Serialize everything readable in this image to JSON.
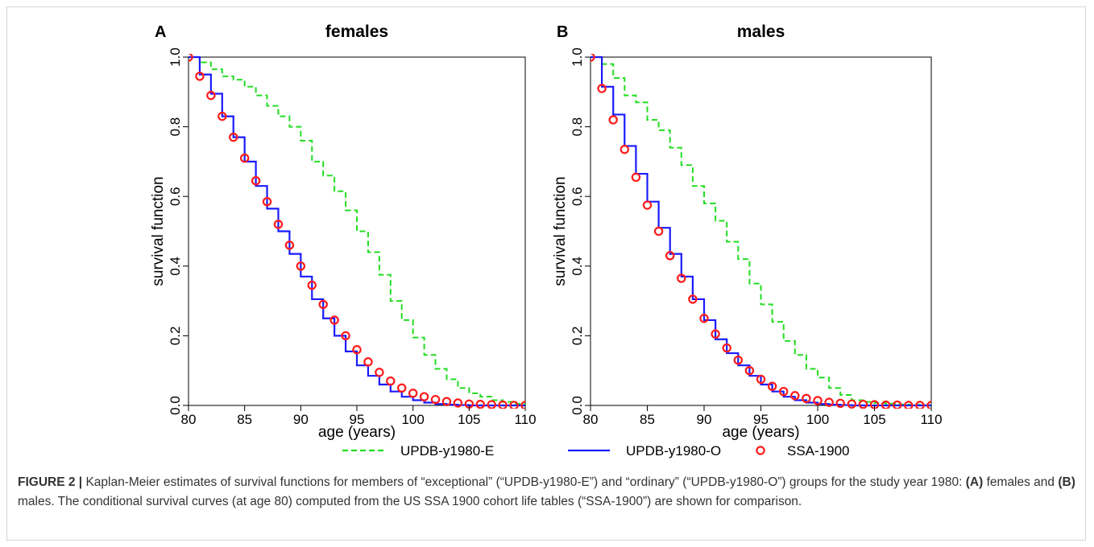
{
  "chart_data": [
    {
      "type": "line",
      "step": true,
      "panel_label": "A",
      "title": "females",
      "xlabel": "age (years)",
      "ylabel": "survival function",
      "xlim": [
        80,
        110
      ],
      "ylim": [
        0,
        1
      ],
      "xticks": [
        "80",
        "85",
        "90",
        "95",
        "100",
        "105",
        "110"
      ],
      "yticks": [
        "0.0",
        "0.2",
        "0.4",
        "0.6",
        "0.8",
        "1.0"
      ],
      "grid": false,
      "series": [
        {
          "name": "UPDB-y1980-E",
          "color": "#22dd22",
          "dash": "dashed",
          "x": [
            80,
            81,
            82,
            83,
            84,
            85,
            86,
            87,
            88,
            89,
            90,
            91,
            92,
            93,
            94,
            95,
            96,
            97,
            98,
            99,
            100,
            101,
            102,
            103,
            104,
            105,
            106,
            107,
            108,
            109,
            110
          ],
          "values": [
            1.0,
            0.985,
            0.965,
            0.945,
            0.935,
            0.915,
            0.89,
            0.86,
            0.83,
            0.8,
            0.76,
            0.7,
            0.66,
            0.615,
            0.56,
            0.5,
            0.44,
            0.375,
            0.3,
            0.245,
            0.195,
            0.145,
            0.105,
            0.075,
            0.05,
            0.035,
            0.025,
            0.015,
            0.01,
            0.005,
            0.0
          ]
        },
        {
          "name": "UPDB-y1980-O",
          "color": "#1a1aff",
          "dash": "solid",
          "x": [
            80,
            81,
            82,
            83,
            84,
            85,
            86,
            87,
            88,
            89,
            90,
            91,
            92,
            93,
            94,
            95,
            96,
            97,
            98,
            99,
            100,
            101,
            102,
            103,
            104,
            105,
            106,
            107,
            108,
            109,
            110
          ],
          "values": [
            1.0,
            0.95,
            0.895,
            0.83,
            0.77,
            0.7,
            0.63,
            0.565,
            0.5,
            0.435,
            0.37,
            0.305,
            0.25,
            0.2,
            0.155,
            0.115,
            0.085,
            0.06,
            0.04,
            0.025,
            0.015,
            0.008,
            0.004,
            0.002,
            0.001,
            0.0,
            0.0,
            0.0,
            0.0,
            0.0,
            0.0
          ]
        },
        {
          "name": "SSA-1900",
          "color": "#ff1a1a",
          "marker": "circle",
          "x": [
            80,
            81,
            82,
            83,
            84,
            85,
            86,
            87,
            88,
            89,
            90,
            91,
            92,
            93,
            94,
            95,
            96,
            97,
            98,
            99,
            100,
            101,
            102,
            103,
            104,
            105,
            106,
            107,
            108,
            109,
            110
          ],
          "values": [
            1.0,
            0.945,
            0.89,
            0.83,
            0.77,
            0.71,
            0.645,
            0.585,
            0.52,
            0.46,
            0.4,
            0.345,
            0.29,
            0.245,
            0.2,
            0.16,
            0.125,
            0.095,
            0.07,
            0.05,
            0.035,
            0.025,
            0.017,
            0.011,
            0.007,
            0.004,
            0.003,
            0.002,
            0.001,
            0.0,
            0.0
          ]
        }
      ]
    },
    {
      "type": "line",
      "step": true,
      "panel_label": "B",
      "title": "males",
      "xlabel": "age (years)",
      "ylabel": "survival function",
      "xlim": [
        80,
        110
      ],
      "ylim": [
        0,
        1
      ],
      "xticks": [
        "80",
        "85",
        "90",
        "95",
        "100",
        "105",
        "110"
      ],
      "yticks": [
        "0.0",
        "0.2",
        "0.4",
        "0.6",
        "0.8",
        "1.0"
      ],
      "grid": false,
      "series": [
        {
          "name": "UPDB-y1980-E",
          "color": "#22dd22",
          "dash": "dashed",
          "x": [
            80,
            81,
            82,
            83,
            84,
            85,
            86,
            87,
            88,
            89,
            90,
            91,
            92,
            93,
            94,
            95,
            96,
            97,
            98,
            99,
            100,
            101,
            102,
            103,
            104,
            105,
            106,
            107,
            108,
            109,
            110
          ],
          "values": [
            1.0,
            0.98,
            0.94,
            0.89,
            0.87,
            0.82,
            0.79,
            0.74,
            0.69,
            0.63,
            0.58,
            0.53,
            0.47,
            0.42,
            0.35,
            0.29,
            0.24,
            0.185,
            0.145,
            0.105,
            0.08,
            0.05,
            0.03,
            0.015,
            0.01,
            0.007,
            0.005,
            0.003,
            0.002,
            0.001,
            0.0
          ]
        },
        {
          "name": "UPDB-y1980-O",
          "color": "#1a1aff",
          "dash": "solid",
          "x": [
            80,
            81,
            82,
            83,
            84,
            85,
            86,
            87,
            88,
            89,
            90,
            91,
            92,
            93,
            94,
            95,
            96,
            97,
            98,
            99,
            100,
            101,
            102,
            103,
            104,
            105,
            106,
            107,
            108,
            109,
            110
          ],
          "values": [
            1.0,
            0.915,
            0.835,
            0.745,
            0.665,
            0.585,
            0.51,
            0.435,
            0.37,
            0.305,
            0.245,
            0.19,
            0.15,
            0.115,
            0.085,
            0.06,
            0.04,
            0.025,
            0.015,
            0.008,
            0.004,
            0.002,
            0.001,
            0.0,
            0.0,
            0.0,
            0.0,
            0.0,
            0.0,
            0.0,
            0.0
          ]
        },
        {
          "name": "SSA-1900",
          "color": "#ff1a1a",
          "marker": "circle",
          "x": [
            80,
            81,
            82,
            83,
            84,
            85,
            86,
            87,
            88,
            89,
            90,
            91,
            92,
            93,
            94,
            95,
            96,
            97,
            98,
            99,
            100,
            101,
            102,
            103,
            104,
            105,
            106,
            107,
            108,
            109,
            110
          ],
          "values": [
            1.0,
            0.91,
            0.82,
            0.735,
            0.655,
            0.575,
            0.5,
            0.43,
            0.365,
            0.305,
            0.25,
            0.205,
            0.165,
            0.13,
            0.1,
            0.075,
            0.055,
            0.04,
            0.028,
            0.02,
            0.014,
            0.009,
            0.006,
            0.004,
            0.003,
            0.002,
            0.001,
            0.001,
            0.0,
            0.0,
            0.0
          ]
        }
      ]
    }
  ],
  "legend": {
    "placement": "bottom",
    "items": [
      {
        "label": "UPDB-y1980-E",
        "color": "#22dd22",
        "style": "dashed"
      },
      {
        "label": "UPDB-y1980-O",
        "color": "#1a1aff",
        "style": "solid"
      },
      {
        "label": "SSA-1900",
        "color": "#ff1a1a",
        "style": "circle"
      }
    ]
  },
  "caption": {
    "label": "FIGURE 2 |",
    "text_1": " Kaplan-Meier estimates of survival functions for members of “exceptional” (“UPDB-y1980-E”) and “ordinary” (“UPDB-y1980-O”) groups for the study year 1980: ",
    "panel_a": "(A)",
    "text_2": " females and ",
    "panel_b": "(B)",
    "text_3": " males. The conditional survival curves (at age 80) computed from the US SSA 1900 cohort life tables (“SSA-1900”) are shown for comparison."
  },
  "colors": {
    "axis": "#000000",
    "caption_label": "#333333",
    "frame": "#cfd6de"
  }
}
